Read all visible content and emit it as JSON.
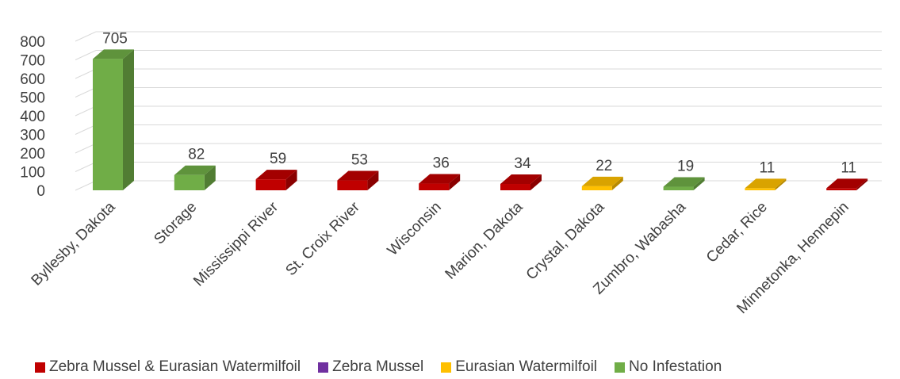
{
  "chart_data": {
    "type": "bar",
    "title": "",
    "xlabel": "",
    "ylabel": "",
    "ylim": [
      0,
      800
    ],
    "yticks": [
      0,
      100,
      200,
      300,
      400,
      500,
      600,
      700,
      800
    ],
    "categories": [
      "Byllesby, Dakota",
      "Storage",
      "Mississippi River",
      "St. Croix River",
      "Wisconsin",
      "Marion, Dakota",
      "Crystal, Dakota",
      "Zumbro, Wabasha",
      "Cedar, Rice",
      "Minnetonka, Hennepin"
    ],
    "values": [
      705,
      82,
      59,
      53,
      36,
      34,
      22,
      19,
      11,
      11
    ],
    "bar_series": [
      "No Infestation",
      "No Infestation",
      "Zebra Mussel & Eurasian Watermilfoil",
      "Zebra Mussel & Eurasian Watermilfoil",
      "Zebra Mussel & Eurasian Watermilfoil",
      "Zebra Mussel & Eurasian Watermilfoil",
      "Eurasian Watermilfoil",
      "No Infestation",
      "Eurasian Watermilfoil",
      "Zebra Mussel & Eurasian Watermilfoil"
    ],
    "legend": [
      {
        "name": "Zebra Mussel & Eurasian Watermilfoil",
        "color": "#c00000"
      },
      {
        "name": "Zebra Mussel",
        "color": "#7030a0"
      },
      {
        "name": "Eurasian Watermilfoil",
        "color": "#ffc000"
      },
      {
        "name": "No Infestation",
        "color": "#70ad47"
      }
    ],
    "legend_position": "bottom",
    "grid": true,
    "style": "3d-column"
  }
}
